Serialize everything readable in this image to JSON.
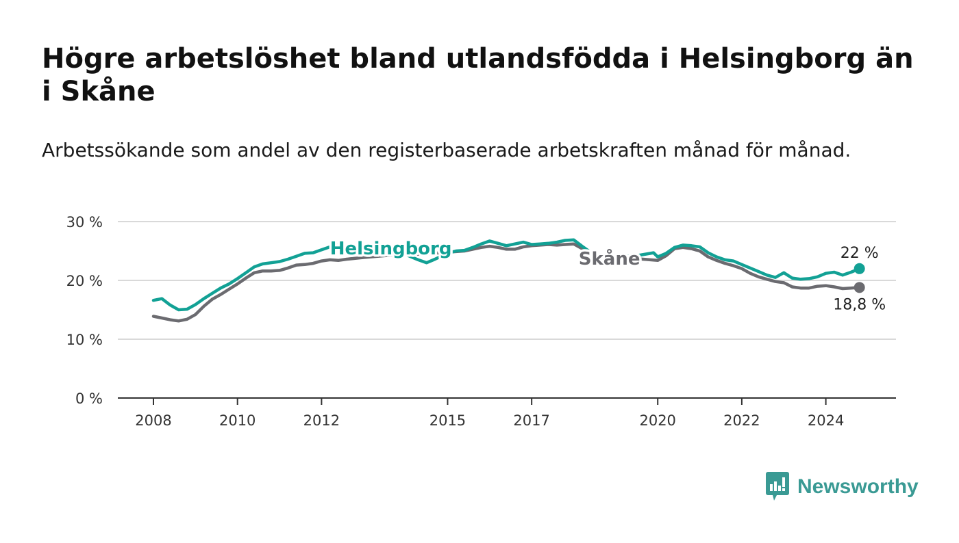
{
  "header": {
    "title": "Högre arbetslöshet bland utlandsfödda i Helsingborg än i Skåne",
    "subtitle": "Arbetssökande som andel av den registerbaserade arbetskraften månad för månad."
  },
  "brand": {
    "name": "Newsworthy",
    "icon": "newsworthy-logo-icon",
    "color": "#3a9a94"
  },
  "chart_data": {
    "type": "line",
    "x_unit": "year",
    "xlim": [
      2007.75,
      2025.75
    ],
    "ylim": [
      0,
      30
    ],
    "y_ticks": [
      0,
      10,
      20,
      30
    ],
    "y_tick_labels": [
      "0 %",
      "10 %",
      "20 %",
      "30 %"
    ],
    "x_ticks": [
      2008,
      2010,
      2012,
      2015,
      2017,
      2020,
      2022,
      2024
    ],
    "x_tick_labels": [
      "2008",
      "2010",
      "2012",
      "2015",
      "2017",
      "2020",
      "2022",
      "2024"
    ],
    "grid": "horizontal",
    "series": [
      {
        "name": "Helsingborg",
        "color": "#12a195",
        "end_label": "22 %",
        "points": [
          [
            2008.0,
            16.6
          ],
          [
            2008.2,
            16.9
          ],
          [
            2008.4,
            15.8
          ],
          [
            2008.6,
            15.0
          ],
          [
            2008.8,
            15.1
          ],
          [
            2009.0,
            15.9
          ],
          [
            2009.2,
            16.9
          ],
          [
            2009.4,
            17.8
          ],
          [
            2009.6,
            18.7
          ],
          [
            2009.8,
            19.4
          ],
          [
            2010.0,
            20.3
          ],
          [
            2010.2,
            21.3
          ],
          [
            2010.4,
            22.3
          ],
          [
            2010.6,
            22.8
          ],
          [
            2010.8,
            23.0
          ],
          [
            2011.0,
            23.2
          ],
          [
            2011.2,
            23.6
          ],
          [
            2011.4,
            24.1
          ],
          [
            2011.6,
            24.6
          ],
          [
            2011.8,
            24.7
          ],
          [
            2012.0,
            25.2
          ],
          [
            2012.2,
            25.7
          ],
          [
            2012.4,
            26.0
          ],
          [
            2012.6,
            25.6
          ],
          [
            2013.0,
            25.2
          ],
          [
            2013.5,
            24.8
          ],
          [
            2014.0,
            24.4
          ],
          [
            2014.3,
            23.5
          ],
          [
            2014.5,
            23.0
          ],
          [
            2014.7,
            23.6
          ],
          [
            2015.0,
            24.6
          ],
          [
            2015.2,
            25.0
          ],
          [
            2015.4,
            25.1
          ],
          [
            2015.6,
            25.6
          ],
          [
            2015.8,
            26.2
          ],
          [
            2016.0,
            26.7
          ],
          [
            2016.2,
            26.3
          ],
          [
            2016.4,
            25.9
          ],
          [
            2016.6,
            26.2
          ],
          [
            2016.8,
            26.5
          ],
          [
            2017.0,
            26.1
          ],
          [
            2017.2,
            26.2
          ],
          [
            2017.4,
            26.3
          ],
          [
            2017.6,
            26.5
          ],
          [
            2017.8,
            26.8
          ],
          [
            2018.0,
            26.9
          ],
          [
            2018.2,
            25.8
          ],
          [
            2018.4,
            24.8
          ],
          [
            2018.6,
            24.2
          ],
          [
            2019.0,
            24.0
          ],
          [
            2019.5,
            24.2
          ],
          [
            2019.9,
            24.7
          ],
          [
            2020.0,
            24.0
          ],
          [
            2020.2,
            24.6
          ],
          [
            2020.4,
            25.6
          ],
          [
            2020.6,
            26.0
          ],
          [
            2020.8,
            25.9
          ],
          [
            2021.0,
            25.7
          ],
          [
            2021.2,
            24.7
          ],
          [
            2021.4,
            24.0
          ],
          [
            2021.6,
            23.5
          ],
          [
            2021.8,
            23.3
          ],
          [
            2022.0,
            22.7
          ],
          [
            2022.2,
            22.1
          ],
          [
            2022.4,
            21.5
          ],
          [
            2022.6,
            20.9
          ],
          [
            2022.8,
            20.5
          ],
          [
            2023.0,
            21.3
          ],
          [
            2023.2,
            20.4
          ],
          [
            2023.4,
            20.2
          ],
          [
            2023.6,
            20.3
          ],
          [
            2023.8,
            20.6
          ],
          [
            2024.0,
            21.2
          ],
          [
            2024.2,
            21.4
          ],
          [
            2024.4,
            20.9
          ],
          [
            2024.6,
            21.4
          ],
          [
            2024.8,
            22.0
          ]
        ]
      },
      {
        "name": "Skåne",
        "color": "#6b6b70",
        "end_label": "18,8 %",
        "points": [
          [
            2008.0,
            13.9
          ],
          [
            2008.2,
            13.6
          ],
          [
            2008.4,
            13.3
          ],
          [
            2008.6,
            13.1
          ],
          [
            2008.8,
            13.4
          ],
          [
            2009.0,
            14.2
          ],
          [
            2009.2,
            15.6
          ],
          [
            2009.4,
            16.8
          ],
          [
            2009.6,
            17.6
          ],
          [
            2009.8,
            18.5
          ],
          [
            2010.0,
            19.4
          ],
          [
            2010.2,
            20.4
          ],
          [
            2010.4,
            21.3
          ],
          [
            2010.6,
            21.6
          ],
          [
            2010.8,
            21.6
          ],
          [
            2011.0,
            21.7
          ],
          [
            2011.2,
            22.1
          ],
          [
            2011.4,
            22.6
          ],
          [
            2011.6,
            22.7
          ],
          [
            2011.8,
            22.9
          ],
          [
            2012.0,
            23.3
          ],
          [
            2012.2,
            23.5
          ],
          [
            2012.4,
            23.4
          ],
          [
            2012.6,
            23.6
          ],
          [
            2013.0,
            23.9
          ],
          [
            2013.5,
            24.2
          ],
          [
            2014.0,
            24.4
          ],
          [
            2014.5,
            24.5
          ],
          [
            2015.0,
            24.8
          ],
          [
            2015.2,
            24.9
          ],
          [
            2015.4,
            25.0
          ],
          [
            2015.6,
            25.3
          ],
          [
            2015.8,
            25.6
          ],
          [
            2016.0,
            25.8
          ],
          [
            2016.2,
            25.6
          ],
          [
            2016.4,
            25.3
          ],
          [
            2016.6,
            25.3
          ],
          [
            2016.8,
            25.7
          ],
          [
            2017.0,
            25.9
          ],
          [
            2017.2,
            26.0
          ],
          [
            2017.4,
            26.1
          ],
          [
            2017.6,
            26.0
          ],
          [
            2017.8,
            26.1
          ],
          [
            2018.0,
            26.2
          ],
          [
            2018.2,
            25.4
          ],
          [
            2018.4,
            24.6
          ],
          [
            2018.6,
            24.0
          ],
          [
            2019.0,
            23.7
          ],
          [
            2019.5,
            23.7
          ],
          [
            2020.0,
            23.4
          ],
          [
            2020.2,
            24.2
          ],
          [
            2020.4,
            25.4
          ],
          [
            2020.6,
            25.6
          ],
          [
            2020.8,
            25.4
          ],
          [
            2021.0,
            25.0
          ],
          [
            2021.2,
            24.0
          ],
          [
            2021.4,
            23.4
          ],
          [
            2021.6,
            22.9
          ],
          [
            2021.8,
            22.5
          ],
          [
            2022.0,
            22.0
          ],
          [
            2022.2,
            21.2
          ],
          [
            2022.4,
            20.6
          ],
          [
            2022.6,
            20.2
          ],
          [
            2022.8,
            19.8
          ],
          [
            2023.0,
            19.6
          ],
          [
            2023.2,
            18.9
          ],
          [
            2023.4,
            18.7
          ],
          [
            2023.6,
            18.7
          ],
          [
            2023.8,
            19.0
          ],
          [
            2024.0,
            19.1
          ],
          [
            2024.2,
            18.9
          ],
          [
            2024.4,
            18.6
          ],
          [
            2024.6,
            18.7
          ],
          [
            2024.8,
            18.8
          ]
        ]
      }
    ],
    "series_labels": [
      {
        "series": "Helsingborg",
        "text": "Helsingborg",
        "x": 2013.65,
        "y": 24.4
      },
      {
        "series": "Skåne",
        "text": "Skåne",
        "x": 2018.85,
        "y": 22.7
      }
    ]
  }
}
